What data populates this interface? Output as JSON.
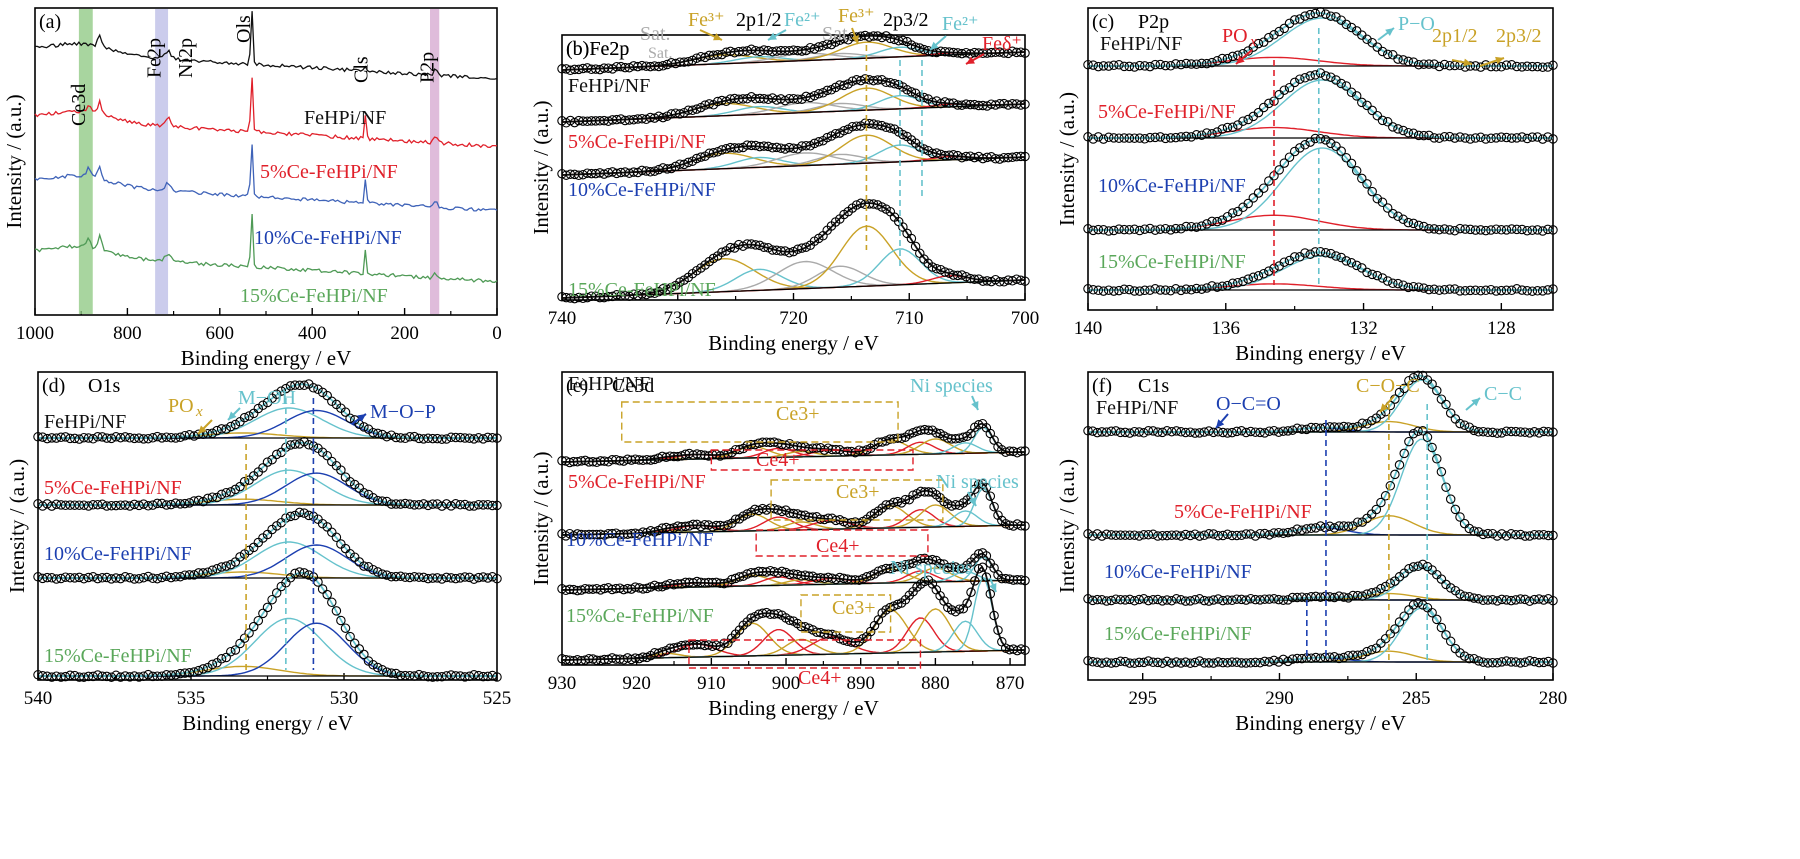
{
  "colors": {
    "black": "#111111",
    "red": "#e0202a",
    "blue": "#1c3fb0",
    "green": "#5aa75a",
    "cyan": "#66c2cc",
    "gold": "#c9a227",
    "gray": "#aaaaaa",
    "survey_blue": "#3f63b8",
    "survey_green": "#4f9a56"
  },
  "chart_data": [
    {
      "id": "a",
      "panel_label": "(a)",
      "type": "line",
      "xlabel": "Binding energy / eV",
      "ylabel": "Intensity / (a.u.)",
      "xlim": [
        1000,
        0
      ],
      "xticks": [
        1000,
        800,
        600,
        400,
        200,
        0
      ],
      "series": [
        {
          "name": "FeHPi/NF",
          "offset": 0.86
        },
        {
          "name": "5%Ce-FeHPi/NF",
          "offset": 0.64
        },
        {
          "name": "10%Ce-FeHPi/NF",
          "offset": 0.43
        },
        {
          "name": "15%Ce-FeHPi/NF",
          "offset": 0.2
        }
      ],
      "peak_labels": [
        "Ce3d",
        "Fe2p",
        "Ni2p",
        "Ols",
        "Cls",
        "P2p"
      ],
      "bands": [
        {
          "label": "Ce3d",
          "range": [
            905,
            875
          ],
          "color": "#8bc77f"
        },
        {
          "label": "Fe2p",
          "range": [
            740,
            712
          ],
          "color": "#b9bbe6"
        },
        {
          "label": "P2p",
          "range": [
            145,
            125
          ],
          "color": "#d4a6cf"
        }
      ]
    },
    {
      "id": "b",
      "panel_label": "(b)Fe2p",
      "type": "line",
      "xlabel": "Binding energy / eV",
      "ylabel": "Intensity / (a.u.)",
      "xlim": [
        740,
        700
      ],
      "xticks": [
        740,
        730,
        720,
        710,
        700
      ],
      "samples": [
        "FeHPi/NF",
        "5%Ce-FeHPi/NF",
        "10%Ce-FeHPi/NF",
        "15%Ce-FeHPi/NF"
      ],
      "components": [
        {
          "label": "Sat.",
          "center": 719,
          "color": "gray"
        },
        {
          "label": "Sat.",
          "center": 716,
          "color": "gray"
        },
        {
          "label": "Fe3+",
          "center": 726,
          "color": "gold"
        },
        {
          "label": "Fe2+",
          "center": 723,
          "color": "cyan"
        },
        {
          "label": "Fe3+",
          "center": 713.7,
          "color": "gold"
        },
        {
          "label": "Fe2+",
          "center": 710.8,
          "color": "cyan"
        },
        {
          "label": "Feδ+",
          "center": 706.5,
          "color": "red"
        }
      ],
      "annotations": [
        "2p1/2",
        "2p3/2"
      ]
    },
    {
      "id": "c",
      "panel_label": "(c)",
      "title": "P2p",
      "type": "line",
      "xlabel": "Binding energy / eV",
      "ylabel": "Intensity / (a.u.)",
      "xlim": [
        140,
        126.5
      ],
      "xticks": [
        140,
        136,
        132,
        128
      ],
      "samples": [
        "FeHPi/NF",
        "5%Ce-FeHPi/NF",
        "10%Ce-FeHPi/NF",
        "15%Ce-FeHPi/NF"
      ],
      "components": [
        {
          "label": "POx",
          "center": 134.6,
          "color": "red"
        },
        {
          "label": "P−O",
          "center": 133.2,
          "color": "cyan"
        }
      ],
      "annotations": [
        "2p1/2",
        "2p3/2"
      ]
    },
    {
      "id": "d",
      "panel_label": "(d)",
      "title": "O1s",
      "type": "line",
      "xlabel": "Binding energy / eV",
      "ylabel": "Intensity / (a.u.)",
      "xlim": [
        540,
        525
      ],
      "xticks": [
        540,
        535,
        530,
        525
      ],
      "samples": [
        "FeHPi/NF",
        "5%Ce-FeHPi/NF",
        "10%Ce-FeHPi/NF",
        "15%Ce-FeHPi/NF"
      ],
      "components": [
        {
          "label": "POx",
          "center": 533.3,
          "color": "gold"
        },
        {
          "label": "M−OH",
          "center": 531.8,
          "color": "cyan"
        },
        {
          "label": "M−O−P",
          "center": 530.9,
          "color": "blue"
        }
      ]
    },
    {
      "id": "e",
      "panel_label": "(e)",
      "title": "Ce3d",
      "type": "line",
      "xlabel": "Binding energy / eV",
      "ylabel": "Intensity / (a.u.)",
      "xlim": [
        930,
        868
      ],
      "xticks": [
        930,
        920,
        910,
        900,
        890,
        880,
        870
      ],
      "samples": [
        "FeHPi/NF",
        "5%Ce-FeHPi/NF",
        "10%Ce-FeHPi/NF",
        "15%Ce-FeHPi/NF"
      ],
      "labels": [
        "Ce3+",
        "Ce4+",
        "Ni species"
      ]
    },
    {
      "id": "f",
      "panel_label": "(f)",
      "title": "C1s",
      "type": "line",
      "xlabel": "Binding energy / eV",
      "ylabel": "Intensity / (a.u.)",
      "xlim": [
        297,
        280
      ],
      "xticks": [
        295,
        290,
        285,
        280
      ],
      "samples": [
        "FeHPi/NF",
        "5%Ce-FeHPi/NF",
        "10%Ce-FeHPi/NF",
        "15%Ce-FeHPi/NF"
      ],
      "components": [
        {
          "label": "O−C=O",
          "center": 288.5,
          "color": "blue"
        },
        {
          "label": "C−O−C",
          "center": 286,
          "color": "gold"
        },
        {
          "label": "C−C",
          "center": 284.6,
          "color": "cyan"
        }
      ]
    }
  ]
}
